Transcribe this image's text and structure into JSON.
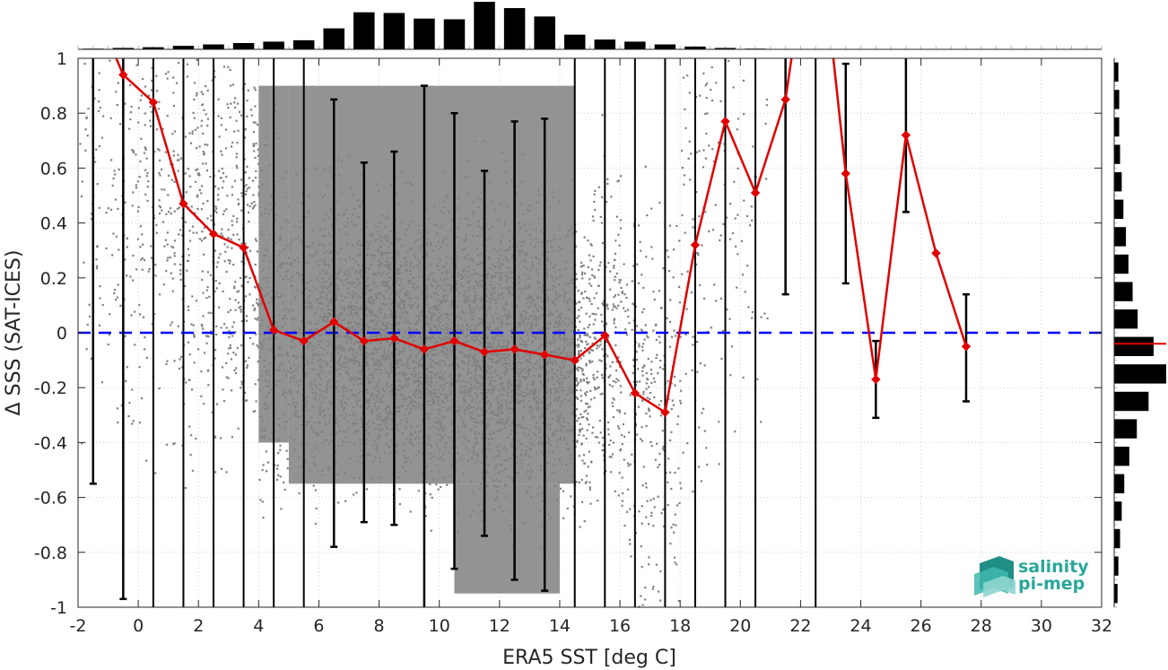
{
  "chart_data": {
    "type": "scatter",
    "xlabel": "ERA5 SST [deg C]",
    "ylabel": "Δ SSS (SAT-ICES)",
    "xlim": [
      -2,
      32
    ],
    "ylim": [
      -1,
      1
    ],
    "xticks": [
      -2,
      0,
      2,
      4,
      6,
      8,
      10,
      12,
      14,
      16,
      18,
      20,
      22,
      24,
      26,
      28,
      30,
      32
    ],
    "yticks": [
      -1,
      -0.8,
      -0.6,
      -0.4,
      -0.2,
      0,
      0.2,
      0.4,
      0.6,
      0.8,
      1
    ],
    "grid": true,
    "legend": "none",
    "zero_line_color": "#0000ff",
    "median_color": "#e00000",
    "scatter_color": "#808080",
    "errorbar_color": "#000000",
    "bin_centers": [
      -1.5,
      -0.5,
      0.5,
      1.5,
      2.5,
      3.5,
      4.5,
      5.5,
      6.5,
      7.5,
      8.5,
      9.5,
      10.5,
      11.5,
      12.5,
      13.5,
      14.5,
      15.5,
      16.5,
      17.5,
      18.5,
      19.5,
      20.5,
      21.5,
      22.5,
      23.5,
      24.5,
      25.5,
      26.5,
      27.5
    ],
    "median": [
      1.2,
      0.94,
      0.84,
      0.47,
      0.36,
      0.31,
      0.01,
      -0.03,
      0.04,
      -0.03,
      -0.02,
      -0.06,
      -0.03,
      -0.07,
      -0.06,
      -0.08,
      -0.1,
      -0.01,
      -0.22,
      -0.29,
      0.32,
      0.77,
      0.51,
      0.85,
      1.6,
      0.58,
      -0.17,
      0.72,
      0.29,
      -0.05
    ],
    "err_low": [
      -0.55,
      -0.97,
      -1.2,
      -1.2,
      -1.2,
      -1.2,
      -1.2,
      -1.2,
      -0.78,
      -0.69,
      -0.7,
      -1.2,
      -0.86,
      -0.74,
      -0.9,
      -0.94,
      -1.2,
      -1.2,
      -1.2,
      -1.2,
      -1.2,
      -1.2,
      -1.2,
      0.14,
      -1.2,
      0.18,
      -0.31,
      0.44,
      0.29,
      -0.25
    ],
    "err_high": [
      1.2,
      1.2,
      1.2,
      1.2,
      1.2,
      1.2,
      1.2,
      1.2,
      0.85,
      0.62,
      0.66,
      0.9,
      0.8,
      0.59,
      0.77,
      0.78,
      1.2,
      1.2,
      1.2,
      1.2,
      1.2,
      1.2,
      1.2,
      1.2,
      1.2,
      0.98,
      -0.03,
      1.0,
      0.29,
      0.14
    ],
    "sst_histogram_counts": [
      1,
      2,
      3,
      5,
      7,
      9,
      11,
      13,
      30,
      53,
      52,
      44,
      43,
      68,
      59,
      47,
      21,
      14,
      11,
      7,
      4,
      2,
      1,
      0,
      0,
      0,
      0,
      0,
      0,
      0
    ],
    "dsss_histogram_bins": [
      0.95,
      0.85,
      0.75,
      0.65,
      0.55,
      0.45,
      0.35,
      0.25,
      0.15,
      0.05,
      -0.05,
      -0.15,
      -0.25,
      -0.35,
      -0.45,
      -0.55,
      -0.65,
      -0.75,
      -0.85,
      -0.95
    ],
    "dsss_histogram_counts": [
      5,
      6,
      6,
      7,
      9,
      11,
      14,
      17,
      22,
      28,
      47,
      62,
      41,
      27,
      18,
      12,
      9,
      7,
      5,
      4
    ],
    "dsss_histogram_median_line": -0.04
  },
  "logo": {
    "line1": "salinity",
    "line2": "pi-mep",
    "color": "#2aa79b"
  }
}
